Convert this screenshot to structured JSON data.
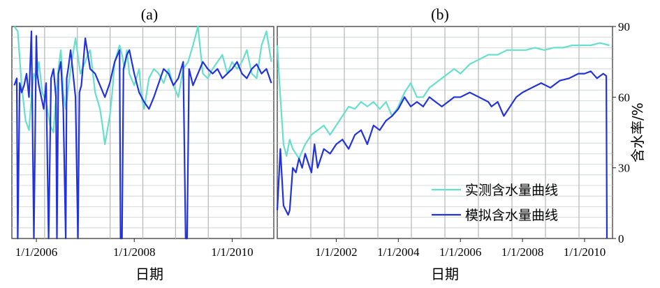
{
  "chart_data": [
    {
      "type": "line",
      "panel_label": "(a)",
      "xlabel": "日期",
      "ylabel": "",
      "x_ticks": [
        "1/1/2006",
        "1/1/2008",
        "1/1/2010"
      ],
      "xlim": [
        2005.5,
        2010.85
      ],
      "ylim": [
        0,
        90
      ],
      "grid": true,
      "series": [
        {
          "name": "实测含水量曲线",
          "color": "#66e0cc",
          "x": [
            2005.55,
            2005.62,
            2005.7,
            2005.78,
            2005.85,
            2005.9,
            2005.95,
            2006.0,
            2006.05,
            2006.12,
            2006.2,
            2006.28,
            2006.35,
            2006.4,
            2006.45,
            2006.5,
            2006.55,
            2006.6,
            2006.7,
            2006.8,
            2006.9,
            2007.0,
            2007.05,
            2007.1,
            2007.2,
            2007.3,
            2007.35,
            2007.4,
            2007.5,
            2007.55,
            2007.6,
            2007.7,
            2007.75,
            2007.8,
            2007.85,
            2007.9,
            2008.0,
            2008.1,
            2008.15,
            2008.2,
            2008.3,
            2008.4,
            2008.5,
            2008.6,
            2008.7,
            2008.8,
            2008.9,
            2009.0,
            2009.1,
            2009.2,
            2009.3,
            2009.4,
            2009.5,
            2009.6,
            2009.7,
            2009.8,
            2009.9,
            2010.0,
            2010.1,
            2010.2,
            2010.3,
            2010.4,
            2010.5,
            2010.6,
            2010.7,
            2010.8
          ],
          "y": [
            90,
            88,
            65,
            50,
            46,
            60,
            70,
            68,
            75,
            62,
            58,
            48,
            45,
            60,
            72,
            80,
            62,
            55,
            72,
            85,
            70,
            75,
            78,
            80,
            62,
            55,
            48,
            40,
            52,
            62,
            75,
            82,
            78,
            72,
            80,
            70,
            65,
            72,
            60,
            55,
            68,
            72,
            70,
            66,
            72,
            65,
            60,
            72,
            75,
            82,
            90,
            70,
            68,
            72,
            75,
            78,
            70,
            75,
            72,
            75,
            80,
            70,
            68,
            82,
            88,
            75
          ]
        },
        {
          "name": "模拟含水量曲线",
          "color": "#2233dd",
          "x": [
            2005.55,
            2005.6,
            2005.62,
            2005.66,
            2005.7,
            2005.75,
            2005.8,
            2005.85,
            2005.9,
            2005.95,
            2006.0,
            2006.02,
            2006.05,
            2006.1,
            2006.15,
            2006.2,
            2006.25,
            2006.3,
            2006.35,
            2006.4,
            2006.42,
            2006.45,
            2006.5,
            2006.55,
            2006.6,
            2006.62,
            2006.65,
            2006.7,
            2006.8,
            2006.85,
            2006.88,
            2006.92,
            2007.0,
            2007.1,
            2007.2,
            2007.3,
            2007.4,
            2007.5,
            2007.6,
            2007.7,
            2007.72,
            2007.75,
            2007.78,
            2007.85,
            2007.9,
            2008.0,
            2008.1,
            2008.2,
            2008.3,
            2008.4,
            2008.5,
            2008.6,
            2008.7,
            2008.8,
            2008.9,
            2009.0,
            2009.05,
            2009.08,
            2009.12,
            2009.2,
            2009.3,
            2009.4,
            2009.5,
            2009.6,
            2009.7,
            2009.8,
            2009.9,
            2010.0,
            2010.1,
            2010.2,
            2010.3,
            2010.4,
            2010.5,
            2010.6,
            2010.7,
            2010.8
          ],
          "y": [
            65,
            68,
            0,
            66,
            62,
            65,
            70,
            60,
            88,
            0,
            86,
            70,
            65,
            60,
            55,
            66,
            0,
            68,
            72,
            60,
            0,
            70,
            75,
            55,
            0,
            68,
            72,
            80,
            60,
            0,
            62,
            65,
            85,
            72,
            70,
            65,
            60,
            66,
            75,
            80,
            0,
            0,
            72,
            78,
            80,
            70,
            62,
            58,
            55,
            60,
            66,
            72,
            70,
            65,
            68,
            75,
            0,
            0,
            72,
            65,
            70,
            75,
            72,
            70,
            72,
            68,
            70,
            72,
            75,
            70,
            68,
            72,
            74,
            70,
            72,
            66
          ]
        }
      ]
    },
    {
      "type": "line",
      "panel_label": "(b)",
      "xlabel": "日期",
      "ylabel": "含水率/%",
      "x_ticks": [
        "1/1/2002",
        "1/1/2004",
        "1/1/2006",
        "1/1/2008",
        "1/1/2010"
      ],
      "y_ticks": [
        "0",
        "30",
        "60",
        "90"
      ],
      "xlim": [
        2000.1,
        2010.9
      ],
      "ylim": [
        0,
        90
      ],
      "grid": true,
      "legend": "bottom-right",
      "series": [
        {
          "name": "实测含水量曲线",
          "color": "#66e0cc",
          "x": [
            2000.1,
            2000.2,
            2000.3,
            2000.4,
            2000.5,
            2000.6,
            2000.8,
            2001.0,
            2001.2,
            2001.4,
            2001.6,
            2001.8,
            2002.0,
            2002.2,
            2002.4,
            2002.6,
            2002.8,
            2003.0,
            2003.2,
            2003.4,
            2003.6,
            2003.8,
            2004.0,
            2004.2,
            2004.4,
            2004.6,
            2004.8,
            2005.0,
            2005.2,
            2005.4,
            2005.6,
            2005.8,
            2006.0,
            2006.3,
            2006.6,
            2006.9,
            2007.2,
            2007.5,
            2007.8,
            2008.1,
            2008.4,
            2008.7,
            2009.0,
            2009.3,
            2009.6,
            2009.9,
            2010.2,
            2010.5,
            2010.8
          ],
          "y": [
            82,
            60,
            40,
            35,
            42,
            38,
            34,
            40,
            44,
            46,
            48,
            44,
            48,
            52,
            56,
            55,
            58,
            56,
            58,
            55,
            58,
            52,
            56,
            62,
            66,
            60,
            60,
            64,
            66,
            68,
            70,
            72,
            70,
            74,
            76,
            78,
            78,
            80,
            80,
            80,
            81,
            80,
            81,
            81,
            82,
            82,
            82,
            83,
            82
          ]
        },
        {
          "name": "模拟含水量曲线",
          "color": "#2233dd",
          "x": [
            2000.1,
            2000.2,
            2000.3,
            2000.45,
            2000.5,
            2000.6,
            2000.7,
            2000.8,
            2000.9,
            2001.0,
            2001.1,
            2001.2,
            2001.3,
            2001.4,
            2001.6,
            2001.8,
            2002.0,
            2002.2,
            2002.4,
            2002.6,
            2002.8,
            2003.0,
            2003.2,
            2003.4,
            2003.6,
            2003.8,
            2004.0,
            2004.2,
            2004.4,
            2004.6,
            2004.8,
            2005.0,
            2005.2,
            2005.4,
            2005.6,
            2005.8,
            2006.0,
            2006.3,
            2006.6,
            2006.9,
            2007.0,
            2007.2,
            2007.4,
            2007.6,
            2007.8,
            2008.0,
            2008.3,
            2008.6,
            2008.9,
            2009.2,
            2009.5,
            2009.8,
            2010.0,
            2010.2,
            2010.4,
            2010.6,
            2010.7,
            2010.72
          ],
          "y": [
            12,
            38,
            14,
            10,
            12,
            30,
            28,
            34,
            30,
            36,
            32,
            28,
            40,
            30,
            38,
            36,
            40,
            42,
            38,
            44,
            46,
            40,
            48,
            46,
            50,
            52,
            55,
            60,
            56,
            58,
            56,
            60,
            58,
            56,
            58,
            60,
            60,
            62,
            60,
            58,
            56,
            58,
            52,
            56,
            60,
            62,
            64,
            66,
            64,
            67,
            68,
            70,
            70,
            71,
            68,
            70,
            69,
            0
          ]
        }
      ]
    }
  ]
}
